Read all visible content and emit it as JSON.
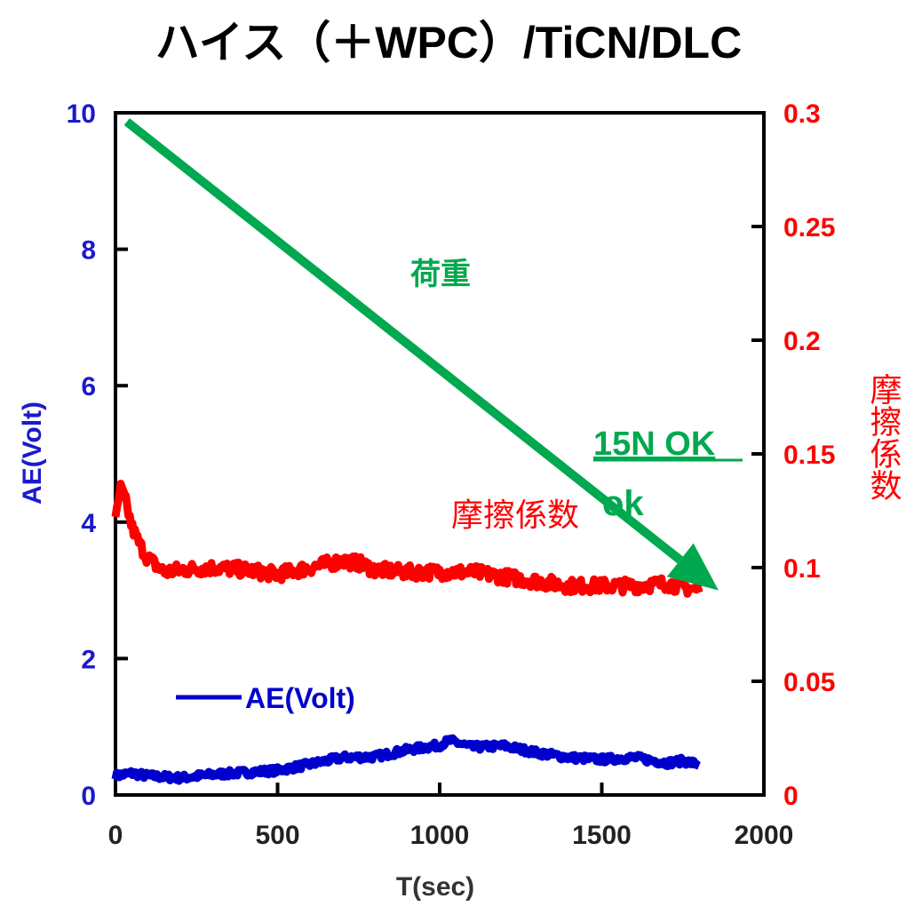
{
  "chart_data": {
    "type": "line",
    "title": "ハイス（＋WPC）/TiCN/DLC",
    "xlabel": "T(sec)",
    "ylabel_left": "AE(Volt)",
    "ylabel_right": "摩擦係数",
    "xlim": [
      0,
      2000
    ],
    "ylim_left": [
      0,
      10
    ],
    "ylim_right": [
      0,
      0.3
    ],
    "x_ticks": [
      "0",
      "500",
      "1000",
      "1500",
      "2000"
    ],
    "x_tick_values": [
      0,
      500,
      1000,
      1500,
      2000
    ],
    "y_left_ticks": [
      "0",
      "2",
      "4",
      "6",
      "8",
      "10"
    ],
    "y_left_tick_values": [
      0,
      2,
      4,
      6,
      8,
      10
    ],
    "y_right_ticks": [
      "0",
      "0.05",
      "0.1",
      "0.15",
      "0.2",
      "0.25",
      "0.3"
    ],
    "y_right_tick_values": [
      0,
      0.05,
      0.1,
      0.15,
      0.2,
      0.25,
      0.3
    ],
    "grid": false,
    "legend": {
      "position": "bottom-left",
      "entries": [
        "AE(Volt)"
      ]
    },
    "series": [
      {
        "name": "AE(Volt)",
        "axis": "left",
        "color": "#0000cc",
        "x": [
          0,
          50,
          100,
          200,
          300,
          400,
          500,
          600,
          700,
          800,
          900,
          1000,
          1030,
          1100,
          1200,
          1300,
          1400,
          1500,
          1600,
          1700,
          1750,
          1800
        ],
        "y": [
          0.28,
          0.32,
          0.28,
          0.25,
          0.3,
          0.33,
          0.36,
          0.45,
          0.55,
          0.56,
          0.66,
          0.73,
          0.8,
          0.7,
          0.72,
          0.62,
          0.55,
          0.52,
          0.55,
          0.47,
          0.5,
          0.45
        ]
      },
      {
        "name": "摩擦係数",
        "axis": "right",
        "color": "#ff0000",
        "x": [
          0,
          15,
          30,
          50,
          75,
          100,
          150,
          200,
          300,
          400,
          500,
          600,
          700,
          750,
          800,
          900,
          1000,
          1100,
          1200,
          1300,
          1400,
          1500,
          1600,
          1700,
          1800
        ],
        "y": [
          0.12,
          0.135,
          0.13,
          0.118,
          0.11,
          0.104,
          0.098,
          0.099,
          0.1,
          0.099,
          0.097,
          0.1,
          0.103,
          0.102,
          0.099,
          0.098,
          0.098,
          0.098,
          0.096,
          0.094,
          0.092,
          0.092,
          0.092,
          0.093,
          0.09
        ]
      }
    ],
    "annotations": [
      {
        "text": "荷重",
        "color": "#00a84f"
      },
      {
        "text": "15N OK",
        "color": "#00a84f",
        "underline": true
      },
      {
        "text": "ok",
        "color": "#00a84f"
      },
      {
        "text": "摩擦係数",
        "color": "#ff0000"
      }
    ],
    "arrow": {
      "label": "荷重",
      "color": "#00a84f",
      "from": [
        35,
        9.87
      ],
      "to": [
        1860,
        3.0
      ],
      "axis": "left"
    }
  }
}
